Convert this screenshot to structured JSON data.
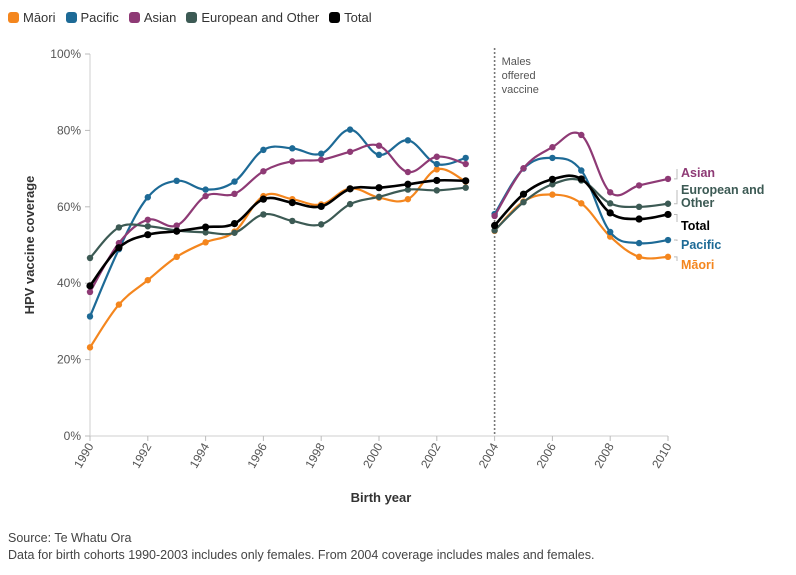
{
  "chart_data": {
    "type": "line",
    "xlabel": "Birth year",
    "ylabel": "HPV vaccine coverage",
    "ylim": [
      0,
      100
    ],
    "yticks": [
      "0%",
      "20%",
      "40%",
      "60%",
      "80%",
      "100%"
    ],
    "yticks_values": [
      0,
      20,
      40,
      60,
      80,
      100
    ],
    "xticks": [
      "1990",
      "1992",
      "1994",
      "1996",
      "1998",
      "2000",
      "2002",
      "2004",
      "2006",
      "2008",
      "2010"
    ],
    "xticks_values": [
      1990,
      1992,
      1994,
      1996,
      1998,
      2000,
      2002,
      2004,
      2006,
      2008,
      2010
    ],
    "xlim": [
      1990,
      2010
    ],
    "grid": false,
    "legend_position": "top-left",
    "annotation": {
      "x": 2004,
      "lines": [
        "Males",
        "offered",
        "vaccine"
      ]
    },
    "series": [
      {
        "name": "Māori",
        "end_label": "Māori",
        "color": "#f4861e",
        "segments": [
          {
            "x": [
              1990,
              1991,
              1992,
              1993,
              1994,
              1995,
              1996,
              1997,
              1998,
              1999,
              2000,
              2001,
              2002,
              2003
            ],
            "y": [
              23.2,
              34.4,
              40.8,
              46.9,
              50.7,
              53.5,
              62.8,
              62.0,
              60.6,
              64.8,
              62.4,
              62.0,
              69.8,
              66.6
            ]
          },
          {
            "x": [
              2004,
              2005,
              2006,
              2007,
              2008,
              2009,
              2010
            ],
            "y": [
              53.7,
              61.4,
              63.2,
              60.9,
              52.2,
              46.9,
              46.9
            ]
          }
        ]
      },
      {
        "name": "Pacific",
        "end_label": "Pacific",
        "color": "#1d6a96",
        "segments": [
          {
            "x": [
              1990,
              1991,
              1992,
              1993,
              1994,
              1995,
              1996,
              1997,
              1998,
              1999,
              2000,
              2001,
              2002,
              2003
            ],
            "y": [
              31.3,
              48.9,
              62.5,
              66.8,
              64.5,
              66.6,
              74.9,
              75.3,
              73.9,
              80.2,
              73.6,
              77.4,
              71.2,
              72.8
            ]
          },
          {
            "x": [
              2004,
              2005,
              2006,
              2007,
              2008,
              2009,
              2010
            ],
            "y": [
              58.1,
              70.0,
              72.8,
              69.5,
              53.4,
              50.5,
              51.3
            ]
          }
        ]
      },
      {
        "name": "Asian",
        "end_label": "Asian",
        "color": "#8e3a75",
        "segments": [
          {
            "x": [
              1990,
              1991,
              1992,
              1993,
              1994,
              1995,
              1996,
              1997,
              1998,
              1999,
              2000,
              2001,
              2002,
              2003
            ],
            "y": [
              37.7,
              50.5,
              56.6,
              55.1,
              62.8,
              63.4,
              69.3,
              71.9,
              72.3,
              74.4,
              76.0,
              69.1,
              73.1,
              71.2
            ]
          },
          {
            "x": [
              2004,
              2005,
              2006,
              2007,
              2008,
              2009,
              2010
            ],
            "y": [
              57.6,
              70.1,
              75.6,
              78.8,
              63.8,
              65.6,
              67.3
            ]
          }
        ]
      },
      {
        "name": "European and Other",
        "end_label_lines": [
          "European and",
          "Other"
        ],
        "color": "#3c5a54",
        "segments": [
          {
            "x": [
              1990,
              1991,
              1992,
              1993,
              1994,
              1995,
              1996,
              1997,
              1998,
              1999,
              2000,
              2001,
              2002,
              2003
            ],
            "y": [
              46.6,
              54.6,
              54.9,
              53.8,
              53.3,
              53.2,
              58.0,
              56.3,
              55.4,
              60.7,
              62.6,
              64.5,
              64.3,
              65.0
            ]
          },
          {
            "x": [
              2004,
              2005,
              2006,
              2007,
              2008,
              2009,
              2010
            ],
            "y": [
              53.8,
              61.2,
              65.9,
              66.9,
              60.9,
              60.0,
              60.8
            ]
          }
        ]
      },
      {
        "name": "Total",
        "end_label": "Total",
        "color": "#000000",
        "segments": [
          {
            "x": [
              1990,
              1991,
              1992,
              1993,
              1994,
              1995,
              1996,
              1997,
              1998,
              1999,
              2000,
              2001,
              2002,
              2003
            ],
            "y": [
              39.3,
              49.3,
              52.7,
              53.6,
              54.7,
              55.6,
              62.0,
              61.1,
              60.1,
              64.7,
              65.0,
              65.9,
              66.9,
              66.8
            ]
          },
          {
            "x": [
              2004,
              2005,
              2006,
              2007,
              2008,
              2009,
              2010
            ],
            "y": [
              55.1,
              63.3,
              67.2,
              67.3,
              58.4,
              56.8,
              58.0
            ]
          }
        ]
      }
    ]
  },
  "source": "Source: Te Whatu Ora",
  "note": "Data for birth cohorts 1990-2003 includes only females. From 2004 coverage includes males and females."
}
